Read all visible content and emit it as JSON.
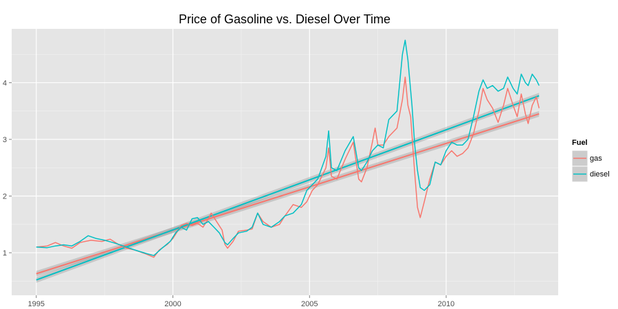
{
  "chart_data": {
    "type": "line",
    "title": "Price of Gasoline vs. Diesel Over Time",
    "xlabel": "",
    "ylabel": "",
    "xlim": [
      1994.1,
      2014.1
    ],
    "ylim": [
      0.25,
      4.95
    ],
    "x_ticks": [
      {
        "value": 1995,
        "label": "1995"
      },
      {
        "value": 2000,
        "label": "2000"
      },
      {
        "value": 2005,
        "label": "2005"
      },
      {
        "value": 2010,
        "label": "2010"
      }
    ],
    "y_ticks": [
      {
        "value": 1,
        "label": "1"
      },
      {
        "value": 2,
        "label": "2"
      },
      {
        "value": 3,
        "label": "3"
      },
      {
        "value": 4,
        "label": "4"
      }
    ],
    "grid": true,
    "legend": {
      "title": "Fuel",
      "position": "right",
      "entries": [
        {
          "label": "gas",
          "color": "#F8766D"
        },
        {
          "label": "diesel",
          "color": "#00BFC4"
        }
      ]
    },
    "series": [
      {
        "name": "gas",
        "color": "#F8766D",
        "points": [
          [
            1995.0,
            1.1
          ],
          [
            1995.4,
            1.12
          ],
          [
            1995.7,
            1.18
          ],
          [
            1996.0,
            1.12
          ],
          [
            1996.3,
            1.08
          ],
          [
            1996.6,
            1.18
          ],
          [
            1997.0,
            1.22
          ],
          [
            1997.4,
            1.2
          ],
          [
            1997.7,
            1.24
          ],
          [
            1998.0,
            1.15
          ],
          [
            1998.3,
            1.08
          ],
          [
            1998.6,
            1.05
          ],
          [
            1999.0,
            0.98
          ],
          [
            1999.3,
            0.92
          ],
          [
            1999.5,
            1.05
          ],
          [
            1999.8,
            1.15
          ],
          [
            2000.0,
            1.25
          ],
          [
            2000.3,
            1.48
          ],
          [
            2000.5,
            1.52
          ],
          [
            2000.7,
            1.48
          ],
          [
            2000.9,
            1.52
          ],
          [
            2001.1,
            1.45
          ],
          [
            2001.3,
            1.6
          ],
          [
            2001.4,
            1.7
          ],
          [
            2001.6,
            1.55
          ],
          [
            2001.8,
            1.4
          ],
          [
            2001.9,
            1.15
          ],
          [
            2002.0,
            1.08
          ],
          [
            2002.2,
            1.2
          ],
          [
            2002.4,
            1.38
          ],
          [
            2002.7,
            1.4
          ],
          [
            2002.9,
            1.42
          ],
          [
            2003.1,
            1.7
          ],
          [
            2003.3,
            1.55
          ],
          [
            2003.6,
            1.45
          ],
          [
            2003.9,
            1.5
          ],
          [
            2004.1,
            1.65
          ],
          [
            2004.4,
            1.85
          ],
          [
            2004.7,
            1.8
          ],
          [
            2004.9,
            1.9
          ],
          [
            2005.1,
            2.1
          ],
          [
            2005.3,
            2.2
          ],
          [
            2005.6,
            2.5
          ],
          [
            2005.7,
            2.85
          ],
          [
            2005.8,
            2.35
          ],
          [
            2006.0,
            2.3
          ],
          [
            2006.3,
            2.65
          ],
          [
            2006.6,
            2.95
          ],
          [
            2006.8,
            2.3
          ],
          [
            2006.9,
            2.25
          ],
          [
            2007.1,
            2.5
          ],
          [
            2007.3,
            2.95
          ],
          [
            2007.4,
            3.2
          ],
          [
            2007.5,
            2.9
          ],
          [
            2007.7,
            2.9
          ],
          [
            2007.9,
            3.05
          ],
          [
            2008.2,
            3.2
          ],
          [
            2008.4,
            3.7
          ],
          [
            2008.5,
            4.1
          ],
          [
            2008.6,
            3.6
          ],
          [
            2008.7,
            3.4
          ],
          [
            2008.85,
            2.4
          ],
          [
            2008.95,
            1.8
          ],
          [
            2009.05,
            1.62
          ],
          [
            2009.2,
            1.9
          ],
          [
            2009.4,
            2.3
          ],
          [
            2009.6,
            2.6
          ],
          [
            2009.8,
            2.55
          ],
          [
            2010.0,
            2.7
          ],
          [
            2010.2,
            2.8
          ],
          [
            2010.4,
            2.7
          ],
          [
            2010.6,
            2.75
          ],
          [
            2010.8,
            2.85
          ],
          [
            2011.0,
            3.1
          ],
          [
            2011.2,
            3.5
          ],
          [
            2011.35,
            3.9
          ],
          [
            2011.5,
            3.7
          ],
          [
            2011.7,
            3.55
          ],
          [
            2011.9,
            3.3
          ],
          [
            2012.1,
            3.6
          ],
          [
            2012.25,
            3.9
          ],
          [
            2012.45,
            3.6
          ],
          [
            2012.6,
            3.4
          ],
          [
            2012.75,
            3.8
          ],
          [
            2012.9,
            3.45
          ],
          [
            2013.0,
            3.28
          ],
          [
            2013.15,
            3.6
          ],
          [
            2013.3,
            3.75
          ],
          [
            2013.4,
            3.55
          ]
        ],
        "trend": {
          "x": [
            1995.0,
            2013.4
          ],
          "y": [
            0.63,
            3.45
          ],
          "band": 0.05
        }
      },
      {
        "name": "diesel",
        "color": "#00BFC4",
        "points": [
          [
            1995.0,
            1.1
          ],
          [
            1995.4,
            1.09
          ],
          [
            1995.7,
            1.12
          ],
          [
            1996.0,
            1.14
          ],
          [
            1996.3,
            1.12
          ],
          [
            1996.6,
            1.2
          ],
          [
            1996.9,
            1.3
          ],
          [
            1997.2,
            1.25
          ],
          [
            1997.5,
            1.22
          ],
          [
            1997.8,
            1.18
          ],
          [
            1998.0,
            1.15
          ],
          [
            1998.3,
            1.1
          ],
          [
            1998.6,
            1.05
          ],
          [
            1999.0,
            0.99
          ],
          [
            1999.3,
            0.95
          ],
          [
            1999.6,
            1.08
          ],
          [
            1999.9,
            1.2
          ],
          [
            2000.1,
            1.35
          ],
          [
            2000.3,
            1.45
          ],
          [
            2000.5,
            1.4
          ],
          [
            2000.7,
            1.6
          ],
          [
            2000.9,
            1.62
          ],
          [
            2001.1,
            1.5
          ],
          [
            2001.3,
            1.55
          ],
          [
            2001.5,
            1.45
          ],
          [
            2001.7,
            1.35
          ],
          [
            2001.9,
            1.18
          ],
          [
            2002.0,
            1.14
          ],
          [
            2002.2,
            1.25
          ],
          [
            2002.4,
            1.35
          ],
          [
            2002.7,
            1.38
          ],
          [
            2002.9,
            1.45
          ],
          [
            2003.1,
            1.7
          ],
          [
            2003.3,
            1.5
          ],
          [
            2003.6,
            1.45
          ],
          [
            2003.9,
            1.55
          ],
          [
            2004.1,
            1.65
          ],
          [
            2004.4,
            1.7
          ],
          [
            2004.7,
            1.85
          ],
          [
            2004.9,
            2.1
          ],
          [
            2005.1,
            2.2
          ],
          [
            2005.3,
            2.3
          ],
          [
            2005.6,
            2.7
          ],
          [
            2005.7,
            3.15
          ],
          [
            2005.8,
            2.5
          ],
          [
            2006.0,
            2.45
          ],
          [
            2006.3,
            2.8
          ],
          [
            2006.6,
            3.05
          ],
          [
            2006.8,
            2.5
          ],
          [
            2006.9,
            2.45
          ],
          [
            2007.1,
            2.6
          ],
          [
            2007.3,
            2.8
          ],
          [
            2007.5,
            2.9
          ],
          [
            2007.7,
            2.85
          ],
          [
            2007.9,
            3.35
          ],
          [
            2008.2,
            3.5
          ],
          [
            2008.4,
            4.5
          ],
          [
            2008.5,
            4.75
          ],
          [
            2008.6,
            4.4
          ],
          [
            2008.75,
            3.6
          ],
          [
            2008.85,
            2.9
          ],
          [
            2008.95,
            2.45
          ],
          [
            2009.05,
            2.15
          ],
          [
            2009.2,
            2.1
          ],
          [
            2009.4,
            2.2
          ],
          [
            2009.6,
            2.6
          ],
          [
            2009.8,
            2.55
          ],
          [
            2010.0,
            2.8
          ],
          [
            2010.2,
            2.95
          ],
          [
            2010.4,
            2.9
          ],
          [
            2010.6,
            2.9
          ],
          [
            2010.8,
            3.0
          ],
          [
            2011.0,
            3.4
          ],
          [
            2011.2,
            3.85
          ],
          [
            2011.35,
            4.05
          ],
          [
            2011.5,
            3.9
          ],
          [
            2011.7,
            3.95
          ],
          [
            2011.9,
            3.85
          ],
          [
            2012.1,
            3.9
          ],
          [
            2012.25,
            4.1
          ],
          [
            2012.45,
            3.9
          ],
          [
            2012.6,
            3.8
          ],
          [
            2012.75,
            4.15
          ],
          [
            2012.9,
            4.0
          ],
          [
            2013.0,
            3.95
          ],
          [
            2013.15,
            4.15
          ],
          [
            2013.3,
            4.05
          ],
          [
            2013.4,
            3.95
          ]
        ],
        "trend": {
          "x": [
            1995.0,
            2013.4
          ],
          "y": [
            0.52,
            3.77
          ],
          "band": 0.05
        }
      }
    ]
  }
}
